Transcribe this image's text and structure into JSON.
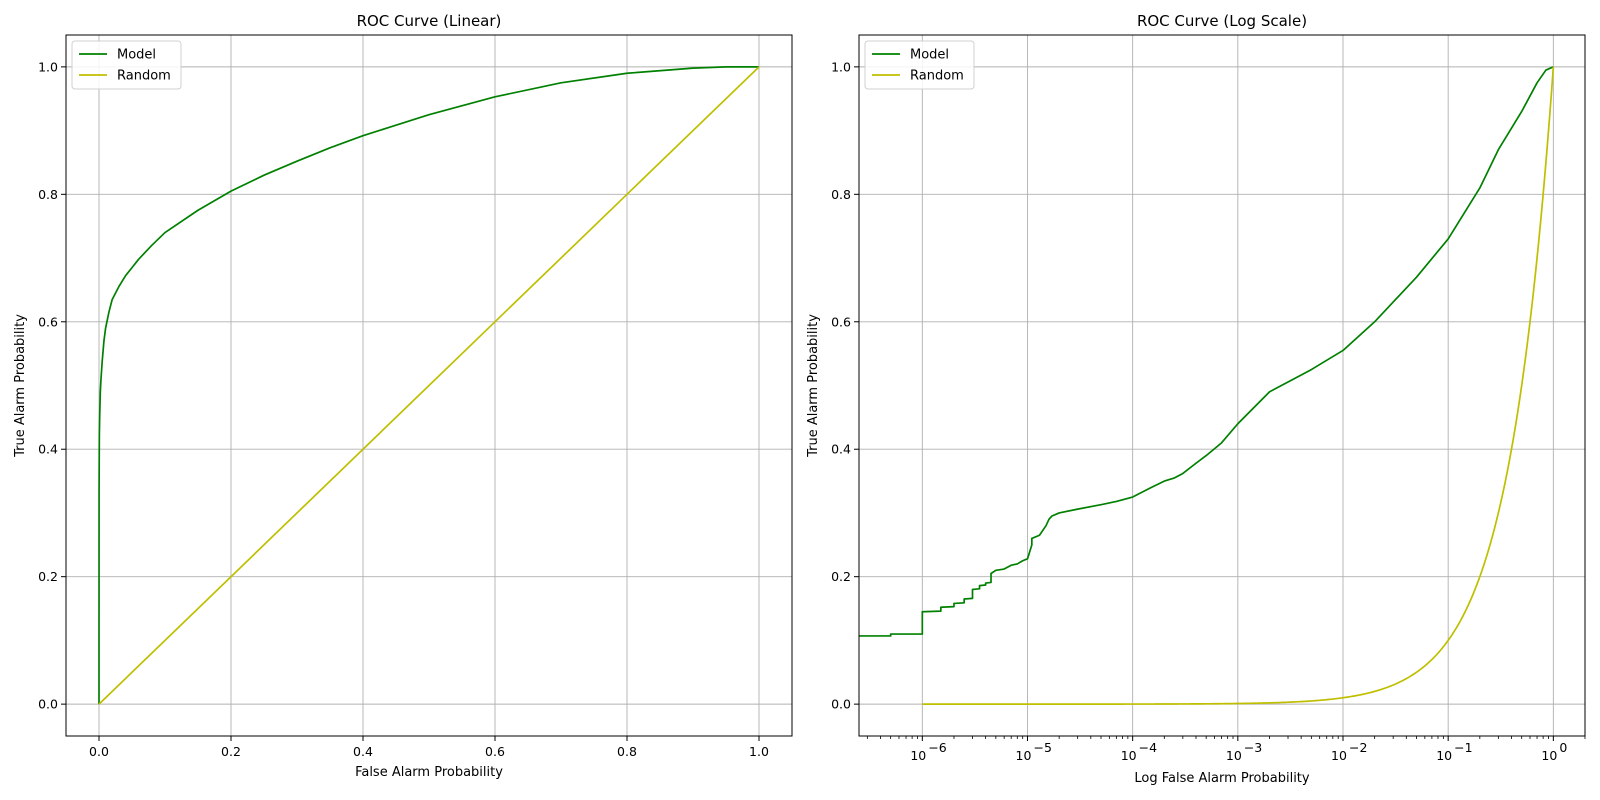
{
  "chart_data": [
    {
      "type": "line",
      "title": "ROC Curve (Linear)",
      "xlabel": "False Alarm Probability",
      "ylabel": "True Alarm Probability",
      "xscale": "linear",
      "xlim": [
        -0.05,
        1.05
      ],
      "ylim": [
        -0.05,
        1.05
      ],
      "xticks": [
        0.0,
        0.2,
        0.4,
        0.6,
        0.8,
        1.0
      ],
      "xtick_labels": [
        "0.0",
        "0.2",
        "0.4",
        "0.6",
        "0.8",
        "1.0"
      ],
      "yticks": [
        0.0,
        0.2,
        0.4,
        0.6,
        0.8,
        1.0
      ],
      "ytick_labels": [
        "0.0",
        "0.2",
        "0.4",
        "0.6",
        "0.8",
        "1.0"
      ],
      "grid": true,
      "legend": "top-left",
      "series": [
        {
          "name": "Model",
          "color": "#008000",
          "x": [
            0,
            1e-05,
            0.0001,
            0.0005,
            0.001,
            0.002,
            0.003,
            0.005,
            0.0075,
            0.01,
            0.015,
            0.02,
            0.03,
            0.04,
            0.05,
            0.06,
            0.08,
            0.1,
            0.15,
            0.2,
            0.25,
            0.3,
            0.35,
            0.4,
            0.5,
            0.6,
            0.7,
            0.8,
            0.9,
            0.95,
            1.0
          ],
          "y": [
            0,
            0.11,
            0.33,
            0.42,
            0.45,
            0.49,
            0.51,
            0.54,
            0.57,
            0.59,
            0.615,
            0.635,
            0.655,
            0.672,
            0.685,
            0.698,
            0.72,
            0.74,
            0.775,
            0.805,
            0.83,
            0.852,
            0.873,
            0.892,
            0.925,
            0.953,
            0.975,
            0.99,
            0.998,
            1.0,
            1.0
          ]
        },
        {
          "name": "Random",
          "color": "#bfbf00",
          "x": [
            0,
            1
          ],
          "y": [
            0,
            1
          ]
        }
      ]
    },
    {
      "type": "line",
      "title": "ROC Curve (Log Scale)",
      "xlabel": "Log False Alarm Probability",
      "ylabel": "True Alarm Probability",
      "xscale": "log",
      "xlim": [
        2.5e-07,
        2.0
      ],
      "ylim": [
        -0.05,
        1.05
      ],
      "xticks": [
        1e-06,
        1e-05,
        0.0001,
        0.001,
        0.01,
        0.1,
        1
      ],
      "xtick_labels": [
        {
          "base": "10",
          "exp": "−6"
        },
        {
          "base": "10",
          "exp": "−5"
        },
        {
          "base": "10",
          "exp": "−4"
        },
        {
          "base": "10",
          "exp": "−3"
        },
        {
          "base": "10",
          "exp": "−2"
        },
        {
          "base": "10",
          "exp": "−1"
        },
        {
          "base": "10",
          "exp": "0"
        }
      ],
      "yticks": [
        0.0,
        0.2,
        0.4,
        0.6,
        0.8,
        1.0
      ],
      "ytick_labels": [
        "0.0",
        "0.2",
        "0.4",
        "0.6",
        "0.8",
        "1.0"
      ],
      "grid": true,
      "legend": "top-left",
      "series": [
        {
          "name": "Model",
          "color": "#008000",
          "x": [
            2.5e-07,
            5e-07,
            5e-07,
            1e-06,
            1e-06,
            1.5e-06,
            1.5e-06,
            2e-06,
            2e-06,
            2.5e-06,
            2.5e-06,
            3e-06,
            3e-06,
            3.5e-06,
            3.5e-06,
            4e-06,
            4e-06,
            4.5e-06,
            4.5e-06,
            5e-06,
            6e-06,
            7e-06,
            8e-06,
            9e-06,
            1e-05,
            1.1e-05,
            1.1e-05,
            1.3e-05,
            1.5e-05,
            1.6e-05,
            1.7e-05,
            2e-05,
            3e-05,
            5e-05,
            7e-05,
            0.0001,
            0.00015,
            0.0002,
            0.00025,
            0.0003,
            0.0004,
            0.0005,
            0.0007,
            0.001,
            0.002,
            0.005,
            0.01,
            0.02,
            0.05,
            0.1,
            0.2,
            0.3,
            0.5,
            0.7,
            0.85,
            1.0
          ],
          "y": [
            0.107,
            0.107,
            0.11,
            0.11,
            0.145,
            0.146,
            0.152,
            0.153,
            0.158,
            0.159,
            0.165,
            0.166,
            0.18,
            0.181,
            0.186,
            0.187,
            0.19,
            0.191,
            0.205,
            0.21,
            0.212,
            0.218,
            0.22,
            0.225,
            0.228,
            0.25,
            0.26,
            0.265,
            0.28,
            0.29,
            0.295,
            0.3,
            0.306,
            0.313,
            0.318,
            0.325,
            0.34,
            0.35,
            0.355,
            0.362,
            0.378,
            0.39,
            0.41,
            0.44,
            0.49,
            0.525,
            0.555,
            0.6,
            0.67,
            0.73,
            0.81,
            0.87,
            0.93,
            0.975,
            0.995,
            1.0
          ]
        },
        {
          "name": "Random",
          "color": "#bfbf00",
          "x": [
            1e-06,
            1e-05,
            0.0001,
            0.001,
            0.003,
            0.005,
            0.01,
            0.02,
            0.05,
            0.1,
            0.15,
            0.2,
            0.3,
            0.4,
            0.5,
            0.6,
            0.7,
            0.8,
            0.9,
            1.0
          ],
          "y": [
            1e-06,
            1e-05,
            0.0001,
            0.001,
            0.003,
            0.005,
            0.01,
            0.02,
            0.05,
            0.1,
            0.15,
            0.2,
            0.3,
            0.4,
            0.5,
            0.6,
            0.7,
            0.8,
            0.9,
            1.0
          ]
        }
      ]
    }
  ]
}
